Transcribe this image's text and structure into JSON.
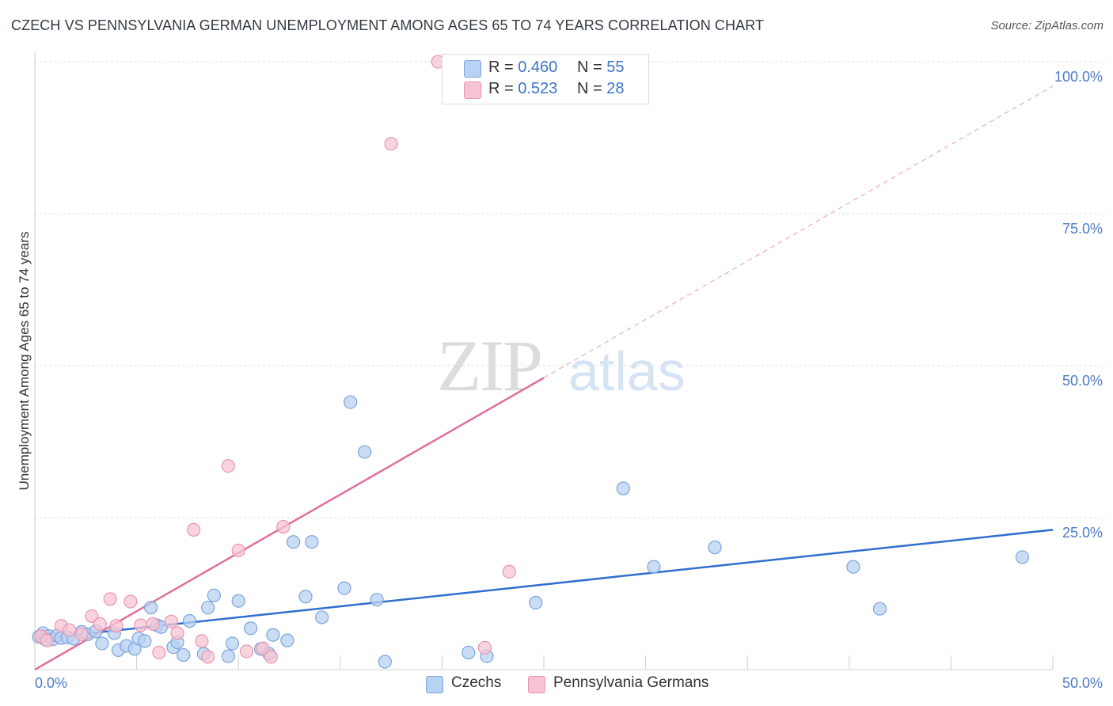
{
  "header": {
    "title": "CZECH VS PENNSYLVANIA GERMAN UNEMPLOYMENT AMONG AGES 65 TO 74 YEARS CORRELATION CHART",
    "source": "Source: ZipAtlas.com"
  },
  "watermark": {
    "zip": "ZIP",
    "atlas": "atlas"
  },
  "legend": {
    "czechs": {
      "r_label": "R =",
      "r_value": "0.460",
      "n_label": "N =",
      "n_value": "55"
    },
    "pa_germans": {
      "r_label": "R =",
      "r_value": "0.523",
      "n_label": "N =",
      "n_value": "28"
    }
  },
  "colors": {
    "czech_fill": "#b8d2f2",
    "czech_stroke": "#7ba4dc",
    "czech_line": "#2f6fcf",
    "pa_fill": "#f7c4d3",
    "pa_stroke": "#e995b0",
    "pa_line": "#e0709a",
    "grid": "#dcdcdc",
    "axis_text": "#4a7cc9"
  },
  "chart_data": {
    "type": "scatter",
    "title": "CZECH VS PENNSYLVANIA GERMAN UNEMPLOYMENT AMONG AGES 65 TO 74 YEARS CORRELATION CHART",
    "xlabel": "",
    "ylabel": "Unemployment Among Ages 65 to 74 years",
    "xlim": [
      0,
      50
    ],
    "ylim": [
      0,
      100
    ],
    "x_tick_labels": [
      "0.0%",
      "50.0%"
    ],
    "y_ticks": [
      25,
      50,
      75,
      100
    ],
    "y_tick_labels": [
      "25.0%",
      "50.0%",
      "75.0%",
      "100.0%"
    ],
    "grid": true,
    "legend_labels": [
      "Czechs",
      "Pennsylvania Germans"
    ],
    "series": [
      {
        "name": "Czechs",
        "R": 0.46,
        "N": 55,
        "trend": {
          "x0": 0,
          "y0": 5.0,
          "x1": 50,
          "y1": 23.0
        },
        "points": [
          [
            0.4,
            6.0
          ],
          [
            0.7,
            5.5
          ],
          [
            0.9,
            5.0
          ],
          [
            1.1,
            5.6
          ],
          [
            1.3,
            5.2
          ],
          [
            1.6,
            5.3
          ],
          [
            1.9,
            5.1
          ],
          [
            2.3,
            6.2
          ],
          [
            2.6,
            5.8
          ],
          [
            3.0,
            6.3
          ],
          [
            3.3,
            4.3
          ],
          [
            3.9,
            6.0
          ],
          [
            4.1,
            3.2
          ],
          [
            4.5,
            3.9
          ],
          [
            4.9,
            3.4
          ],
          [
            5.1,
            5.1
          ],
          [
            5.4,
            4.7
          ],
          [
            5.7,
            10.2
          ],
          [
            6.0,
            7.3
          ],
          [
            6.2,
            7.0
          ],
          [
            6.8,
            3.7
          ],
          [
            7.0,
            4.5
          ],
          [
            7.3,
            2.4
          ],
          [
            7.6,
            8.0
          ],
          [
            8.3,
            2.6
          ],
          [
            8.5,
            10.2
          ],
          [
            8.8,
            12.2
          ],
          [
            9.5,
            2.2
          ],
          [
            9.7,
            4.3
          ],
          [
            10.0,
            11.3
          ],
          [
            10.6,
            6.8
          ],
          [
            11.1,
            3.4
          ],
          [
            11.5,
            2.6
          ],
          [
            11.7,
            5.7
          ],
          [
            12.4,
            4.8
          ],
          [
            12.7,
            21.0
          ],
          [
            13.3,
            12.0
          ],
          [
            13.6,
            21.0
          ],
          [
            14.1,
            8.6
          ],
          [
            15.2,
            13.4
          ],
          [
            15.5,
            44.0
          ],
          [
            16.2,
            35.8
          ],
          [
            16.8,
            11.5
          ],
          [
            17.2,
            1.3
          ],
          [
            21.3,
            2.8
          ],
          [
            22.2,
            2.2
          ],
          [
            24.6,
            11.0
          ],
          [
            28.9,
            29.8
          ],
          [
            30.4,
            16.9
          ],
          [
            33.4,
            20.1
          ],
          [
            40.2,
            16.9
          ],
          [
            41.5,
            10.0
          ],
          [
            48.5,
            18.5
          ],
          [
            0.2,
            5.4
          ],
          [
            0.5,
            5.0
          ]
        ]
      },
      {
        "name": "Pennsylvania Germans",
        "R": 0.523,
        "N": 28,
        "trend": {
          "x0": 0,
          "y0": 0.0,
          "x1": 25,
          "y1": 48.0,
          "dashed_to": {
            "x": 50,
            "y": 96.0
          }
        },
        "points": [
          [
            0.3,
            5.5
          ],
          [
            0.6,
            4.8
          ],
          [
            1.3,
            7.2
          ],
          [
            1.7,
            6.5
          ],
          [
            2.3,
            5.8
          ],
          [
            2.8,
            8.8
          ],
          [
            3.2,
            7.5
          ],
          [
            3.7,
            11.6
          ],
          [
            4.0,
            7.2
          ],
          [
            4.7,
            11.2
          ],
          [
            5.2,
            7.3
          ],
          [
            5.8,
            7.5
          ],
          [
            6.1,
            2.8
          ],
          [
            6.7,
            7.9
          ],
          [
            7.0,
            6.0
          ],
          [
            7.8,
            23.0
          ],
          [
            8.2,
            4.7
          ],
          [
            8.5,
            2.1
          ],
          [
            9.5,
            33.5
          ],
          [
            10.0,
            19.6
          ],
          [
            10.4,
            3.0
          ],
          [
            11.2,
            3.5
          ],
          [
            11.6,
            2.1
          ],
          [
            12.2,
            23.5
          ],
          [
            17.5,
            86.5
          ],
          [
            19.8,
            100.0
          ],
          [
            22.1,
            3.6
          ],
          [
            23.3,
            16.1
          ]
        ]
      }
    ]
  },
  "bottom_legend": {
    "czechs": "Czechs",
    "pa_germans": "Pennsylvania Germans"
  }
}
